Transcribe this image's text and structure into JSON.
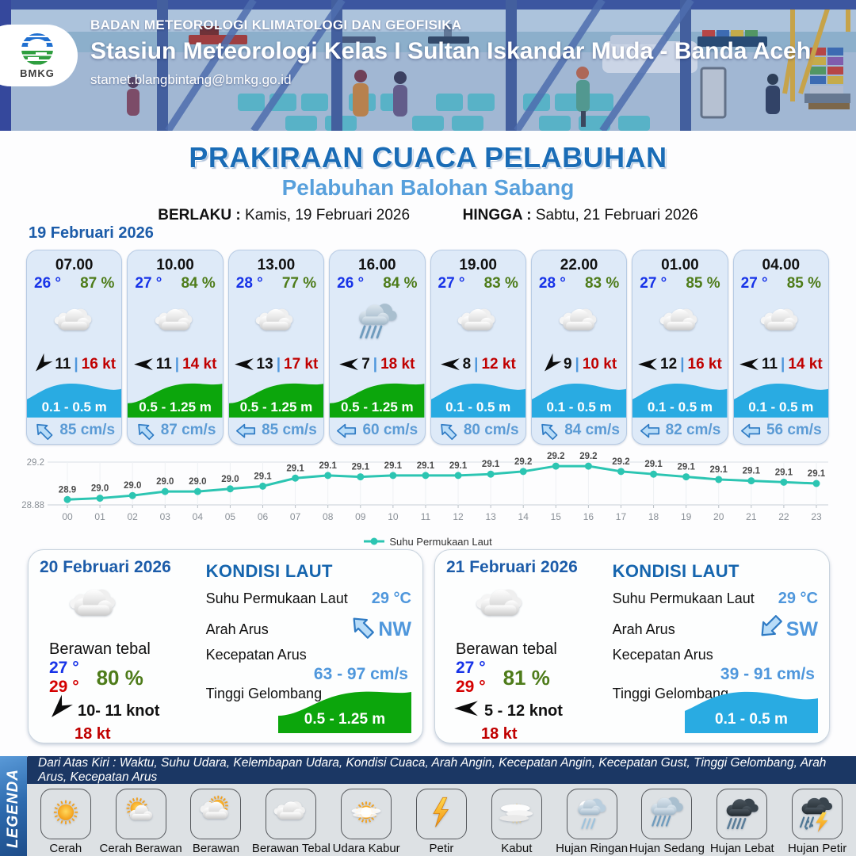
{
  "header": {
    "logo_text": "BMKG",
    "agency": "BADAN METEOROLOGI KLIMATOLOGI DAN GEOFISIKA",
    "station": "Stasiun Meteorologi Kelas I Sultan Iskandar Muda - Banda Aceh",
    "email": "stamet.blangbintang@bmkg.go.id"
  },
  "title": {
    "main": "PRAKIRAAN CUACA PELABUHAN",
    "subtitle": "Pelabuhan Balohan Sabang",
    "valid_from_label": "BERLAKU :",
    "valid_from": "Kamis, 19 Februari 2026",
    "valid_to_label": "HINGGA :",
    "valid_to": "Sabtu, 21 Februari 2026"
  },
  "day1": {
    "date": "19 Februari 2026",
    "cards": [
      {
        "time": "07.00",
        "temp": "26 °",
        "humidity": "87 %",
        "weather_icon": "berawan-tebal",
        "wind_dir_icon": "arrow-sw",
        "wind_speed": "11",
        "wind_sep": "|",
        "wind_gust": "16 kt",
        "wave_height": "0.1 - 0.5 m",
        "wave_color": "cyan",
        "current_dir_icon": "arrow-nw",
        "current_speed": "85 cm/s"
      },
      {
        "time": "10.00",
        "temp": "27 °",
        "humidity": "84 %",
        "weather_icon": "berawan-tebal",
        "wind_dir_icon": "arrow-w",
        "wind_speed": "11",
        "wind_sep": "|",
        "wind_gust": "14 kt",
        "wave_height": "0.5 - 1.25 m",
        "wave_color": "green",
        "current_dir_icon": "arrow-nw",
        "current_speed": "87 cm/s"
      },
      {
        "time": "13.00",
        "temp": "28 °",
        "humidity": "77 %",
        "weather_icon": "berawan-tebal",
        "wind_dir_icon": "arrow-w",
        "wind_speed": "13",
        "wind_sep": "|",
        "wind_gust": "17 kt",
        "wave_height": "0.5 - 1.25 m",
        "wave_color": "green",
        "current_dir_icon": "arrow-w",
        "current_speed": "85 cm/s"
      },
      {
        "time": "16.00",
        "temp": "26 °",
        "humidity": "84 %",
        "weather_icon": "hujan-sedang",
        "wind_dir_icon": "arrow-w",
        "wind_speed": "7",
        "wind_sep": "|",
        "wind_gust": "18 kt",
        "wave_height": "0.5 - 1.25 m",
        "wave_color": "green",
        "current_dir_icon": "arrow-w",
        "current_speed": "60 cm/s"
      },
      {
        "time": "19.00",
        "temp": "27 °",
        "humidity": "83 %",
        "weather_icon": "berawan-tebal",
        "wind_dir_icon": "arrow-w",
        "wind_speed": "8",
        "wind_sep": "|",
        "wind_gust": "12 kt",
        "wave_height": "0.1 - 0.5 m",
        "wave_color": "cyan",
        "current_dir_icon": "arrow-nw",
        "current_speed": "80 cm/s"
      },
      {
        "time": "22.00",
        "temp": "28 °",
        "humidity": "83 %",
        "weather_icon": "berawan-tebal",
        "wind_dir_icon": "arrow-sw",
        "wind_speed": "9",
        "wind_sep": "|",
        "wind_gust": "10 kt",
        "wave_height": "0.1 - 0.5 m",
        "wave_color": "cyan",
        "current_dir_icon": "arrow-nw",
        "current_speed": "84 cm/s"
      },
      {
        "time": "01.00",
        "temp": "27 °",
        "humidity": "85 %",
        "weather_icon": "berawan-tebal",
        "wind_dir_icon": "arrow-w",
        "wind_speed": "12",
        "wind_sep": "|",
        "wind_gust": "16 kt",
        "wave_height": "0.1 - 0.5 m",
        "wave_color": "cyan",
        "current_dir_icon": "arrow-w",
        "current_speed": "82 cm/s"
      },
      {
        "time": "04.00",
        "temp": "27 °",
        "humidity": "85 %",
        "weather_icon": "berawan-tebal",
        "wind_dir_icon": "arrow-w",
        "wind_speed": "11",
        "wind_sep": "|",
        "wind_gust": "14 kt",
        "wave_height": "0.1 - 0.5 m",
        "wave_color": "cyan",
        "current_dir_icon": "arrow-w",
        "current_speed": "56 cm/s"
      }
    ]
  },
  "chart_data": {
    "type": "line",
    "title": "",
    "legend": "Suhu Permukaan Laut",
    "x": [
      "00",
      "01",
      "02",
      "03",
      "04",
      "05",
      "06",
      "07",
      "08",
      "09",
      "10",
      "11",
      "12",
      "13",
      "14",
      "15",
      "16",
      "17",
      "18",
      "19",
      "20",
      "21",
      "22",
      "23"
    ],
    "values": [
      28.9,
      29.0,
      29.0,
      29.0,
      29.0,
      29.0,
      29.1,
      29.1,
      29.1,
      29.1,
      29.1,
      29.1,
      29.1,
      29.1,
      29.2,
      29.2,
      29.2,
      29.2,
      29.1,
      29.1,
      29.1,
      29.1,
      29.1,
      29.1
    ],
    "plot": [
      28.92,
      28.93,
      28.95,
      28.98,
      28.98,
      29.0,
      29.02,
      29.08,
      29.1,
      29.09,
      29.1,
      29.1,
      29.1,
      29.11,
      29.13,
      29.17,
      29.17,
      29.13,
      29.11,
      29.09,
      29.07,
      29.06,
      29.05,
      29.04
    ],
    "ylim": [
      28.88,
      29.2
    ],
    "yticks": [
      "29.2",
      "28.88"
    ],
    "line_color": "#2cc5b2",
    "legend_position": "bottom",
    "grid": true
  },
  "day2": {
    "date": "20 Februari 2026",
    "weather_icon": "berawan-tebal",
    "condition": "Berawan tebal",
    "temp_min": "27 °",
    "temp_max": "29 °",
    "humidity": "80 %",
    "wind_dir_icon": "arrow-sw",
    "wind": "10- 11 knot",
    "gust": "18 kt",
    "sea": {
      "title": "KONDISI LAUT",
      "sst_label": "Suhu Permukaan Laut",
      "sst": "29 °C",
      "current_dir_label": "Arah Arus",
      "current_dir": "NW",
      "current_dir_icon": "arrow-nw",
      "current_speed_label": "Kecepatan Arus",
      "current_speed": "63  - 97 cm/s",
      "wave_label": "Tinggi Gelombang",
      "wave": "0.5 - 1.25 m",
      "wave_color": "green"
    }
  },
  "day3": {
    "date": "21 Februari 2026",
    "weather_icon": "berawan-tebal",
    "condition": "Berawan tebal",
    "temp_min": "27 °",
    "temp_max": "29 °",
    "humidity": "81 %",
    "wind_dir_icon": "arrow-w",
    "wind": "5  - 12 knot",
    "gust": "18 kt",
    "sea": {
      "title": "KONDISI LAUT",
      "sst_label": "Suhu Permukaan Laut",
      "sst": "29 °C",
      "current_dir_label": "Arah Arus",
      "current_dir": "SW",
      "current_dir_icon": "arrow-sw",
      "current_speed_label": "Kecepatan Arus",
      "current_speed": "39 - 91 cm/s",
      "wave_label": "Tinggi Gelombang",
      "wave": "0.1 - 0.5 m",
      "wave_color": "cyan"
    }
  },
  "legend": {
    "bar_label": "LEGENDA",
    "note": "Dari Atas Kiri : Waktu, Suhu Udara, Kelembapan Udara, Kondisi Cuaca, Arah Angin, Kecepatan Angin, Kecepatan Gust, Tinggi Gelombang, Arah Arus, Kecepatan Arus",
    "items": [
      {
        "label": "Cerah",
        "icon": "cerah"
      },
      {
        "label": "Cerah Berawan",
        "icon": "cerah-berawan"
      },
      {
        "label": "Berawan",
        "icon": "berawan"
      },
      {
        "label": "Berawan Tebal",
        "icon": "berawan-tebal"
      },
      {
        "label": "Udara Kabur",
        "icon": "udara-kabur"
      },
      {
        "label": "Petir",
        "icon": "petir"
      },
      {
        "label": "Kabut",
        "icon": "kabut"
      },
      {
        "label": "Hujan Ringan",
        "icon": "hujan-ringan"
      },
      {
        "label": "Hujan Sedang",
        "icon": "hujan-sedang"
      },
      {
        "label": "Hujan Lebat",
        "icon": "hujan-lebat"
      },
      {
        "label": "Hujan Petir",
        "icon": "hujan-petir"
      }
    ]
  },
  "colors": {
    "title_blue": "#1a6cb6",
    "subtitle_blue": "#58a0dc",
    "date_blue": "#1c5ca9",
    "temp_blue": "#1733e8",
    "temp_red": "#d40000",
    "humidity_green": "#4e7c1a",
    "gust_red": "#c00000",
    "wave_cyan": "#29abe2",
    "wave_green": "#0ca60c",
    "current_blue": "#5b9bd5",
    "chart_teal": "#2cc5b2",
    "navy": "#1b3764",
    "legend_bar_blue": "#2e6cb0"
  }
}
